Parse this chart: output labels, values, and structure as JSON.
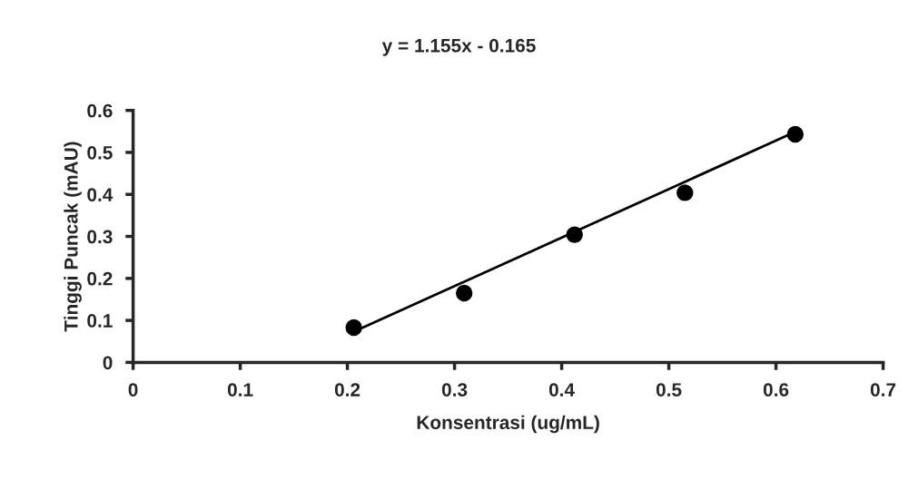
{
  "chart_data": {
    "type": "scatter",
    "title": "y = 1.155x - 0.165",
    "xlabel": "Konsentrasi (ug/mL)",
    "ylabel": "Tinggi Puncak (mAU)",
    "series": [
      {
        "color": "#000000",
        "marker": "circle",
        "x": [
          0.206,
          0.309,
          0.412,
          0.515,
          0.618
        ],
        "values": [
          0.083,
          0.165,
          0.304,
          0.404,
          0.543
        ]
      },
      {
        "type": "line",
        "color": "#000000",
        "line_style": "solid",
        "x": [
          0.206,
          0.618
        ],
        "values": [
          0.073,
          0.549
        ]
      }
    ],
    "xlim": [
      0,
      0.7
    ],
    "xticks": [
      0,
      0.1,
      0.2,
      0.3,
      0.4,
      0.5,
      0.6,
      0.7
    ],
    "ylim": [
      0,
      0.6
    ],
    "yticks": [
      0,
      0.1,
      0.2,
      0.3,
      0.4,
      0.5,
      0.6
    ],
    "grid": false,
    "legend": false
  }
}
